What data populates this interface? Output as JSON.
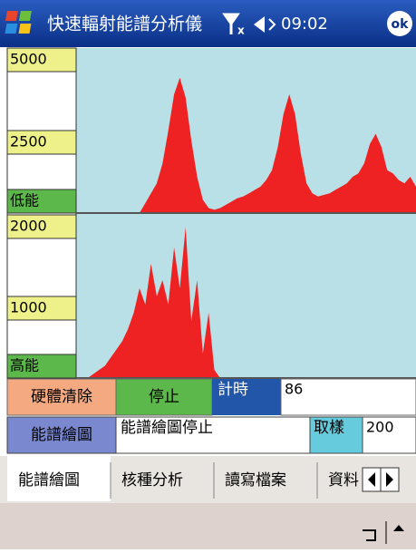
{
  "title_bar": {
    "title": "快速輻射能譜分析儀",
    "time": "09:02",
    "ok": "ok"
  },
  "panels": [
    {
      "ylim": [
        0,
        5000
      ],
      "ticks": [
        5000,
        2500
      ],
      "label": "低能",
      "color": "#ee2222",
      "values": [
        0,
        0,
        0,
        0,
        0,
        0,
        0,
        0,
        0,
        0,
        0,
        0,
        300,
        600,
        900,
        1500,
        2500,
        3600,
        4100,
        3500,
        2200,
        1100,
        400,
        150,
        100,
        150,
        250,
        350,
        450,
        500,
        600,
        700,
        800,
        1000,
        1300,
        2000,
        3000,
        3600,
        3000,
        1800,
        900,
        600,
        500,
        550,
        600,
        700,
        800,
        900,
        1100,
        1200,
        1500,
        2100,
        2400,
        2000,
        1300,
        1200,
        1000,
        900,
        1100,
        800
      ]
    },
    {
      "ylim": [
        0,
        2000
      ],
      "ticks": [
        2000,
        1000
      ],
      "label": "高能",
      "color": "#ee2222",
      "values": [
        0,
        0,
        0,
        50,
        100,
        150,
        250,
        350,
        450,
        600,
        800,
        1100,
        900,
        1400,
        1000,
        1200,
        900,
        1600,
        1100,
        1850,
        700,
        1200,
        300,
        800,
        100,
        0,
        0,
        0,
        0,
        0,
        0,
        0,
        0,
        0,
        0,
        0,
        0,
        0,
        0,
        0,
        0,
        0,
        0,
        0,
        0,
        0,
        0,
        0,
        0,
        0,
        0,
        0,
        0,
        0,
        0,
        0,
        0,
        0,
        0,
        0
      ]
    }
  ],
  "controls": {
    "clear": "硬體清除",
    "stop": "停止",
    "timer_label": "計時",
    "timer_value": "86",
    "spectrum": "能譜繪圖",
    "status": "能譜繪圖停止",
    "sample_label": "取樣",
    "sample_value": "200"
  },
  "tabs": [
    "能譜繪圖",
    "核種分析",
    "讀寫檔案",
    "資料"
  ]
}
